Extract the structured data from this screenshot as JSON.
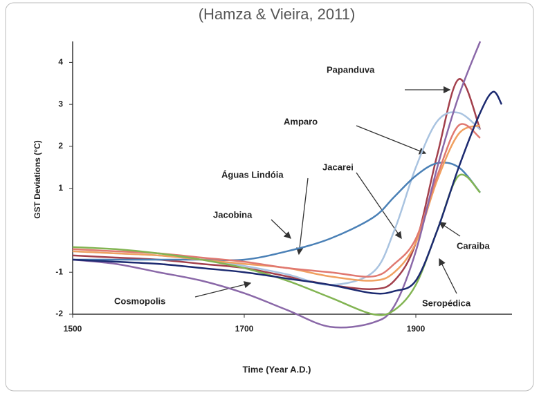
{
  "chart_data": {
    "type": "line",
    "title": "(Hamza & Vieira, 2011)",
    "xlabel": "Time (Year A.D.)",
    "ylabel": "GST Deviations (°C)",
    "x": [
      1500,
      1550,
      1600,
      1650,
      1700,
      1750,
      1800,
      1850,
      1875,
      1900,
      1925,
      1950,
      1975,
      1990,
      2000
    ],
    "xlim": [
      1500,
      2000
    ],
    "xticks": [
      1500,
      1700,
      1900
    ],
    "ylim": [
      -2,
      4.5
    ],
    "yticks": [
      -2,
      -1,
      1,
      2,
      3,
      4
    ],
    "series": [
      {
        "name": "Papanduva",
        "color": "#a3404c",
        "values": [
          -0.6,
          -0.65,
          -0.7,
          -0.8,
          -0.9,
          -1.1,
          -1.3,
          -1.4,
          -1.2,
          -0.3,
          1.8,
          3.6,
          2.4,
          null,
          null
        ]
      },
      {
        "name": "Amparo",
        "color": "#a9c3e0",
        "values": [
          -0.5,
          -0.55,
          -0.6,
          -0.7,
          -0.85,
          -1.05,
          -1.3,
          -1.0,
          0,
          1.5,
          2.6,
          2.8,
          2.4,
          null,
          null
        ]
      },
      {
        "name": "Águas Lindóia",
        "color": "#4a80b6",
        "values": [
          -0.7,
          -0.7,
          -0.7,
          -0.7,
          -0.7,
          -0.5,
          -0.2,
          0.3,
          0.8,
          1.3,
          1.6,
          1.5,
          0.9,
          null,
          null
        ]
      },
      {
        "name": "Jacarei",
        "color": "#f0a060",
        "values": [
          -0.5,
          -0.55,
          -0.6,
          -0.7,
          -0.8,
          -0.9,
          -1.1,
          -1.2,
          -1.0,
          -0.3,
          1.2,
          2.3,
          2.5,
          null,
          null
        ]
      },
      {
        "name": "Jacobina",
        "color": "#e07870",
        "values": [
          -0.45,
          -0.5,
          -0.55,
          -0.65,
          -0.75,
          -0.9,
          -1.0,
          -1.1,
          -0.8,
          -0.2,
          1.3,
          2.5,
          2.2,
          null,
          null
        ]
      },
      {
        "name": "Cosmopolis",
        "color": "#8a68a8",
        "values": [
          -0.7,
          -0.8,
          -1.0,
          -1.2,
          -1.5,
          -1.9,
          -2.3,
          -2.2,
          -1.8,
          -0.5,
          1.5,
          3.2,
          4.5,
          null,
          null
        ]
      },
      {
        "name": "Caraiba",
        "color": "#82b452",
        "values": [
          -0.4,
          -0.45,
          -0.55,
          -0.7,
          -0.9,
          -1.2,
          -1.6,
          -2.0,
          -1.9,
          -1.3,
          0,
          1.3,
          0.9,
          null,
          null
        ]
      },
      {
        "name": "Seropédica",
        "color": "#1c2a70",
        "values": [
          -0.7,
          -0.75,
          -0.8,
          -0.9,
          -1.0,
          -1.15,
          -1.3,
          -1.5,
          -1.45,
          -1.2,
          0,
          1.5,
          2.8,
          3.3,
          3.0
        ]
      }
    ]
  }
}
